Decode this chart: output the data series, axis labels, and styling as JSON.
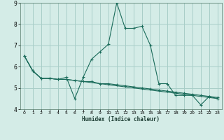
{
  "xlabel": "Humidex (Indice chaleur)",
  "bg_color": "#d4ece7",
  "grid_color": "#a8cec8",
  "line_color": "#1a6b5a",
  "xlim": [
    -0.5,
    23.5
  ],
  "ylim": [
    4,
    9
  ],
  "xticks": [
    0,
    1,
    2,
    3,
    4,
    5,
    6,
    7,
    8,
    9,
    10,
    11,
    12,
    13,
    14,
    15,
    16,
    17,
    18,
    19,
    20,
    21,
    22,
    23
  ],
  "yticks": [
    4,
    5,
    6,
    7,
    8,
    9
  ],
  "series1_y": [
    6.5,
    5.8,
    5.45,
    5.45,
    5.4,
    5.5,
    4.5,
    5.5,
    6.35,
    6.7,
    7.05,
    9.0,
    7.8,
    7.8,
    7.9,
    7.0,
    5.2,
    5.2,
    4.65,
    4.65,
    4.65,
    4.2,
    4.6,
    4.5
  ],
  "series2_y": [
    6.5,
    5.8,
    5.45,
    5.45,
    5.4,
    5.4,
    5.35,
    5.3,
    5.3,
    5.2,
    5.2,
    5.15,
    5.1,
    5.05,
    5.0,
    4.95,
    4.9,
    4.85,
    4.8,
    4.75,
    4.7,
    4.65,
    4.6,
    4.55
  ],
  "series3_y": [
    6.5,
    5.8,
    5.45,
    5.45,
    5.4,
    5.4,
    5.35,
    5.3,
    5.25,
    5.2,
    5.15,
    5.1,
    5.05,
    5.0,
    4.95,
    4.9,
    4.85,
    4.8,
    4.75,
    4.7,
    4.65,
    4.6,
    4.55,
    4.5
  ]
}
